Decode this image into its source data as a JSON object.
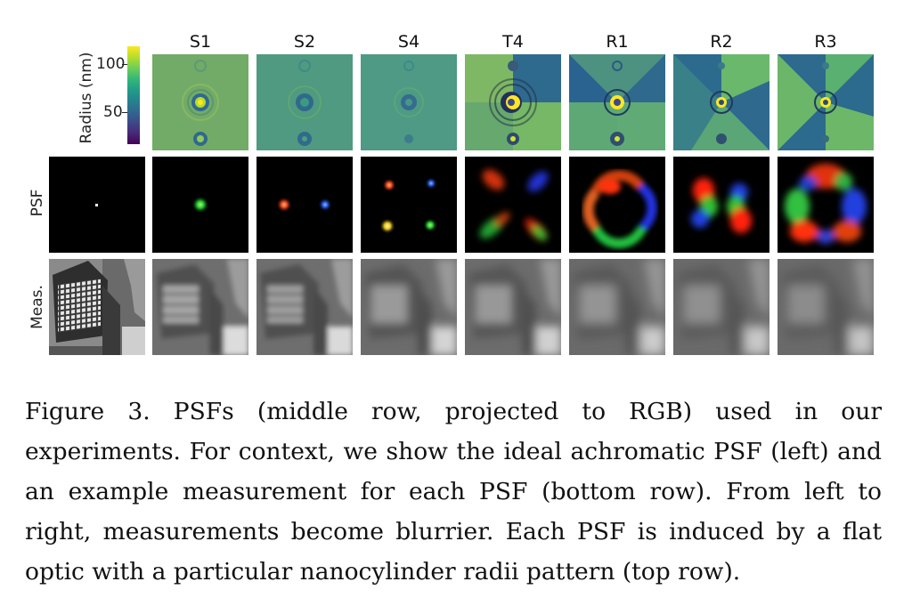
{
  "figure": {
    "columns": [
      "S1",
      "S2",
      "S4",
      "T4",
      "R1",
      "R2",
      "R3"
    ],
    "row_labels": {
      "psf": "PSF",
      "meas": "Meas."
    },
    "colorbar": {
      "label": "Radius (nm)",
      "ticks": [
        "100",
        "50"
      ],
      "colormap": "viridis"
    },
    "colors": {
      "radius_base": "#6fa86a",
      "psf_background": "#000000"
    }
  },
  "caption": {
    "text": "Figure 3. PSFs (middle row, projected to RGB) used in our experiments. For context, we show the ideal achromatic PSF (left) and an example measurement for each PSF (bottom row). From left to right, measurements become blurrier. Each PSF is induced by a flat optic with a particular nanocylinder radii pattern (top row)."
  }
}
